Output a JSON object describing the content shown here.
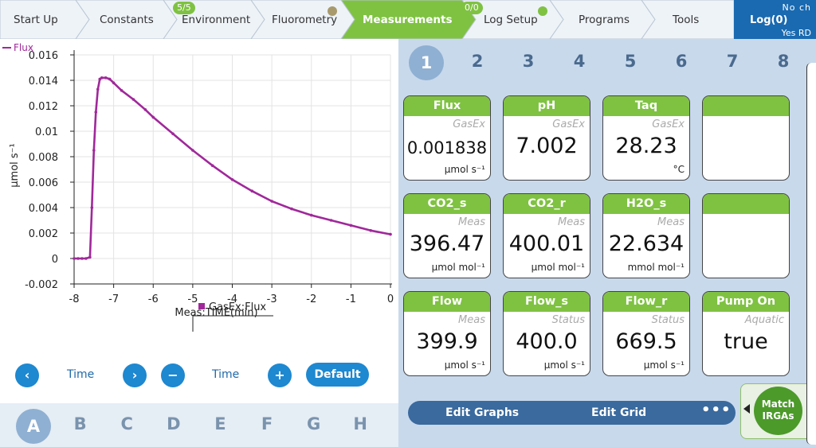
{
  "nav": {
    "tabs": [
      {
        "label": "Start Up"
      },
      {
        "label": "Constants"
      },
      {
        "label": "Environment",
        "badge": "5/5"
      },
      {
        "label": "Fluorometry",
        "dot_color": "#a89a6c"
      },
      {
        "label": "Measurements",
        "active": true
      },
      {
        "label": "Log Setup",
        "badge": "0/0",
        "dot_color": "#7fc242"
      },
      {
        "label": "Programs"
      },
      {
        "label": "Tools"
      }
    ],
    "log": {
      "title": "Log(0)",
      "status_top": "No ch",
      "status_bottom": "Yes RD"
    }
  },
  "colors": {
    "nav_bg": "#eef3f8",
    "nav_active": "#7fc242",
    "accent_blue": "#1e88d0",
    "card_header": "#7fc242",
    "flux_series": "#a0289a",
    "right_panel_bg": "#c8d9ec"
  },
  "chart_data": {
    "type": "line",
    "legend_top": "Flux",
    "xlabel": "Meas:TIME(min)",
    "ylabel": "µmol s⁻¹",
    "xlim": [
      -8,
      0
    ],
    "ylim": [
      -0.002,
      0.016
    ],
    "x_ticks": [
      "-8",
      "-7",
      "-6",
      "-5",
      "-4",
      "-3",
      "-2",
      "-1",
      "0"
    ],
    "y_ticks": [
      "-0.002",
      "0",
      "0.002",
      "0.004",
      "0.006",
      "0.008",
      "0.01",
      "0.012",
      "0.014",
      "0.016"
    ],
    "grid": true,
    "series": [
      {
        "name": "GasEx:Flux",
        "color": "#a0289a",
        "x": [
          -8.0,
          -7.9,
          -7.8,
          -7.7,
          -7.6,
          -7.55,
          -7.5,
          -7.45,
          -7.4,
          -7.35,
          -7.3,
          -7.2,
          -7.1,
          -7.0,
          -6.8,
          -6.5,
          -6.2,
          -6.0,
          -5.5,
          -5.0,
          -4.5,
          -4.0,
          -3.5,
          -3.0,
          -2.5,
          -2.0,
          -1.5,
          -1.0,
          -0.5,
          0.0
        ],
        "y": [
          0.0,
          0.0,
          0.0,
          0.0,
          0.0001,
          0.004,
          0.0085,
          0.0115,
          0.0133,
          0.0141,
          0.0142,
          0.0142,
          0.0141,
          0.0138,
          0.0132,
          0.0125,
          0.0117,
          0.0111,
          0.0098,
          0.0085,
          0.0073,
          0.0062,
          0.0053,
          0.0045,
          0.0039,
          0.0034,
          0.003,
          0.0026,
          0.0022,
          0.0019
        ]
      }
    ],
    "legend_bottom": "GasEx:Flux"
  },
  "controls": {
    "prev_glyph": "‹",
    "left_label": "Time",
    "next_glyph": "›",
    "minus_glyph": "−",
    "right_label": "Time",
    "plus_glyph": "+",
    "default_label": "Default"
  },
  "graph_tabs": [
    "A",
    "B",
    "C",
    "D",
    "E",
    "F",
    "G",
    "H"
  ],
  "grid_tabs": [
    "1",
    "2",
    "3",
    "4",
    "5",
    "6",
    "7",
    "8"
  ],
  "cards": [
    {
      "title": "Flux",
      "source": "GasEx",
      "value": "0.001838",
      "unit": "µmol s⁻¹",
      "small": true
    },
    {
      "title": "pH",
      "source": "GasEx",
      "value": "7.002",
      "unit": ""
    },
    {
      "title": "Taq",
      "source": "GasEx",
      "value": "28.23",
      "unit": "°C"
    },
    {
      "title": "",
      "source": "",
      "value": "",
      "unit": "",
      "empty": true
    },
    {
      "title": "CO2_s",
      "source": "Meas",
      "value": "396.47",
      "unit": "µmol mol⁻¹"
    },
    {
      "title": "CO2_r",
      "source": "Meas",
      "value": "400.01",
      "unit": "µmol mol⁻¹"
    },
    {
      "title": "H2O_s",
      "source": "Meas",
      "value": "22.634",
      "unit": "mmol mol⁻¹"
    },
    {
      "title": "",
      "source": "",
      "value": "",
      "unit": "",
      "empty": true
    },
    {
      "title": "Flow",
      "source": "Meas",
      "value": "399.9",
      "unit": "µmol s⁻¹"
    },
    {
      "title": "Flow_s",
      "source": "Status",
      "value": "400.0",
      "unit": "µmol s⁻¹"
    },
    {
      "title": "Flow_r",
      "source": "Status",
      "value": "669.5",
      "unit": "µmol s⁻¹"
    },
    {
      "title": "Pump On",
      "source": "Aquatic",
      "value": "true",
      "unit": ""
    }
  ],
  "bottom_bar": {
    "edit_graphs": "Edit Graphs",
    "edit_grid": "Edit Grid",
    "more": "•••"
  },
  "match_button": {
    "line1": "Match",
    "line2": "IRGAs"
  }
}
